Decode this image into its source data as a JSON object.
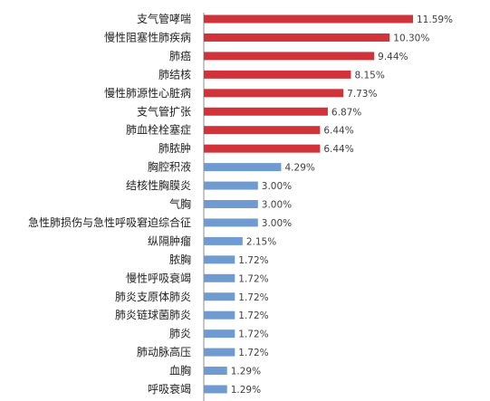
{
  "chart_data": {
    "type": "bar",
    "orientation": "horizontal",
    "categories": [
      "支气管哮喘",
      "慢性阻塞性肺疾病",
      "肺癌",
      "肺结核",
      "慢性肺源性心脏病",
      "支气管扩张",
      "肺血栓栓塞症",
      "肺脓肿",
      "胸腔积液",
      "结核性胸膜炎",
      "气胸",
      "急性肺损伤与急性呼吸窘迫综合征",
      "纵隔肿瘤",
      "脓胸",
      "慢性呼吸衰竭",
      "肺炎支原体肺炎",
      "肺炎链球菌肺炎",
      "肺炎",
      "肺动脉高压",
      "血胸",
      "呼吸衰竭"
    ],
    "values": [
      11.59,
      10.3,
      9.44,
      8.15,
      7.73,
      6.87,
      6.44,
      6.44,
      4.29,
      3.0,
      3.0,
      3.0,
      2.15,
      1.72,
      1.72,
      1.72,
      1.72,
      1.72,
      1.72,
      1.29,
      1.29
    ],
    "value_labels": [
      "11.59%",
      "10.30%",
      "9.44%",
      "8.15%",
      "7.73%",
      "6.87%",
      "6.44%",
      "6.44%",
      "4.29%",
      "3.00%",
      "3.00%",
      "3.00%",
      "2.15%",
      "1.72%",
      "1.72%",
      "1.72%",
      "1.72%",
      "1.72%",
      "1.72%",
      "1.29%",
      "1.29%"
    ],
    "xlim": [
      0,
      11.59
    ],
    "grid": false,
    "legend": "none",
    "colors": {
      "highlight": "#d0343a",
      "normal": "#6f9bd1"
    },
    "highlight_count": 8
  }
}
